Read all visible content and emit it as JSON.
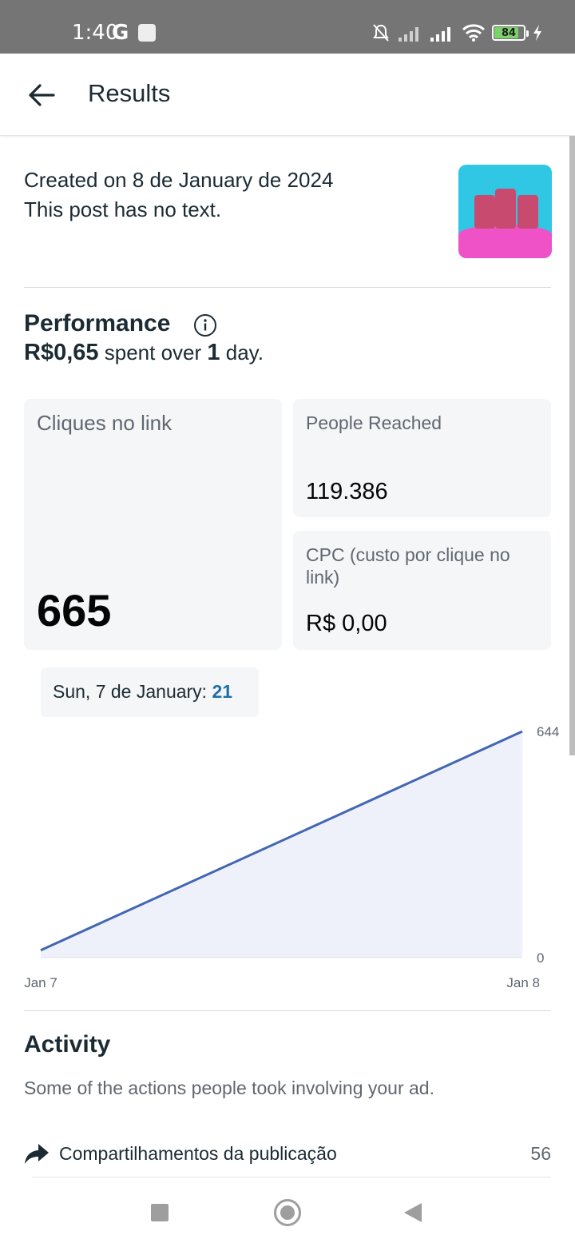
{
  "status_bar": {
    "time": "1:40",
    "carrier_glyph": "G",
    "battery": "84",
    "battery_level": 0.84,
    "icons": [
      "notification-icon",
      "bell-off-icon",
      "signal-icon",
      "signal-icon",
      "wifi-icon",
      "battery-icon",
      "charging-icon"
    ]
  },
  "header": {
    "title": "Results",
    "back_icon": "arrow-left-icon"
  },
  "post": {
    "created": "Created on 8 de January de 2024",
    "text_note": "This post has no text."
  },
  "performance": {
    "title": "Performance",
    "amount": "R$0,65",
    "spent_over": " spent over ",
    "days": "1",
    "days_suffix": " day."
  },
  "cards": {
    "link_clicks": {
      "label": "Cliques no link",
      "value": "665"
    },
    "people_reached": {
      "label": "People Reached",
      "value": "119.386"
    },
    "cpc": {
      "label": "CPC (custo por clique no link)",
      "value": "R$ 0,00"
    }
  },
  "tooltip": {
    "label": "Sun, 7 de January: ",
    "value": "21"
  },
  "chart_data": {
    "type": "area",
    "x": [
      "Jan 7",
      "Jan 8"
    ],
    "series": [
      {
        "values": [
          21,
          644
        ]
      }
    ],
    "y_tick_labels": [
      "0",
      "644"
    ],
    "x_tick_labels": [
      "Jan 7",
      "Jan 8"
    ],
    "ylim": [
      0,
      644
    ],
    "grid": false,
    "line_color": "#4267b2",
    "fill_color": "#eef0fa"
  },
  "activity": {
    "title": "Activity",
    "description": "Some of the actions people took involving your ad.",
    "items": [
      {
        "icon": "share-icon",
        "label": "Compartilhamentos da publicação",
        "count": "56"
      }
    ]
  },
  "nav_bar": {
    "icons": [
      "recents-icon",
      "home-icon",
      "back-icon"
    ]
  }
}
